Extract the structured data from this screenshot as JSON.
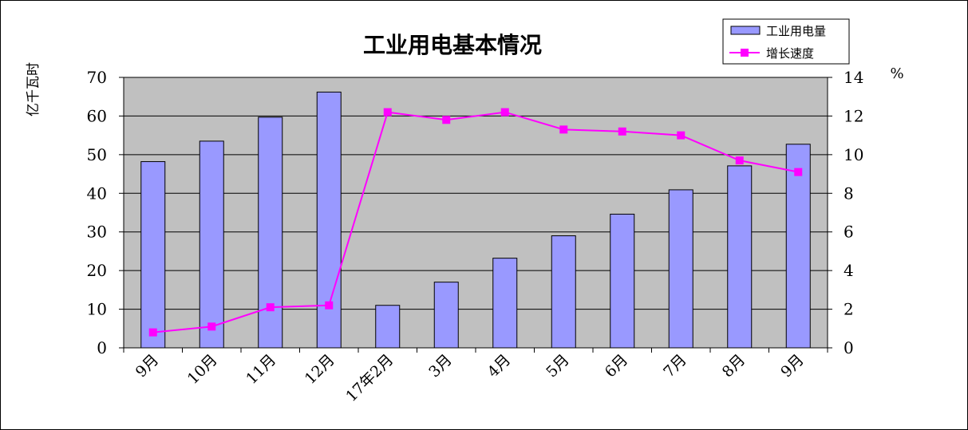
{
  "chart_data": {
    "type": "bar",
    "title": "工业用电基本情况",
    "ylabel": "亿千瓦时",
    "y2label": "%",
    "categories": [
      "9月",
      "10月",
      "11月",
      "12月",
      "17年2月",
      "3月",
      "4月",
      "5月",
      "6月",
      "7月",
      "8月",
      "9月"
    ],
    "ylim": [
      0,
      70
    ],
    "y2lim": [
      0,
      14
    ],
    "yticks": [
      "0",
      "10",
      "20",
      "30",
      "40",
      "50",
      "60",
      "70"
    ],
    "y2ticks": [
      "0",
      "2",
      "4",
      "6",
      "8",
      "10",
      "12",
      "14"
    ],
    "grid": true,
    "legend_position": "top-right",
    "series": [
      {
        "name": "工业用电量",
        "type": "bar",
        "axis": "left",
        "color": "#9999ff",
        "values": [
          48.2,
          53.5,
          59.7,
          66.2,
          11.0,
          17.0,
          23.2,
          29.0,
          34.6,
          40.9,
          47.1,
          52.7
        ]
      },
      {
        "name": "增长速度",
        "type": "line",
        "axis": "right",
        "color": "#ff00ff",
        "values": [
          0.8,
          1.1,
          2.1,
          2.2,
          12.2,
          11.8,
          12.2,
          11.3,
          11.2,
          11.0,
          9.7,
          9.1
        ]
      }
    ]
  }
}
